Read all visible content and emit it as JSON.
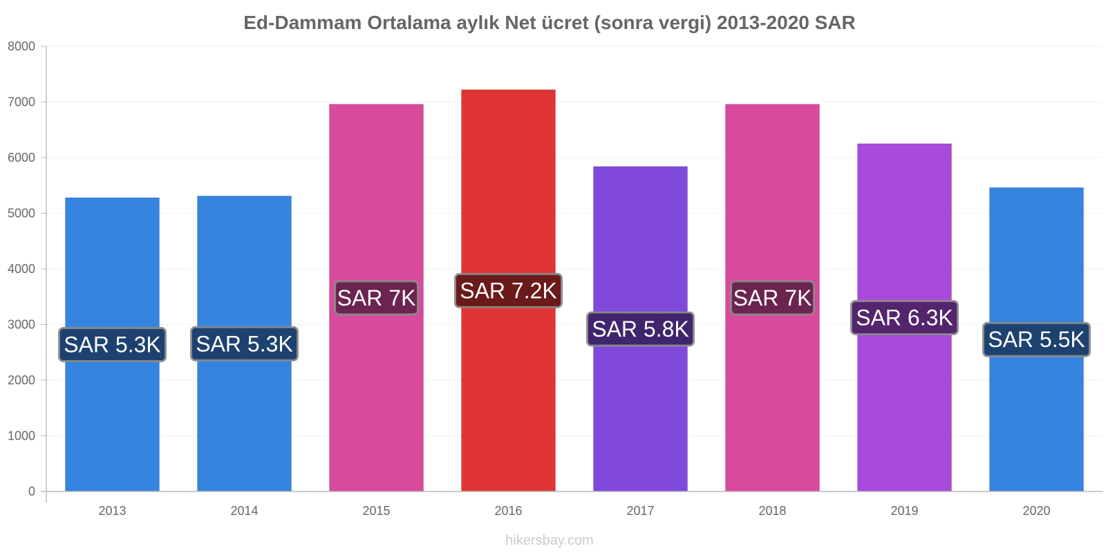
{
  "chart_data": {
    "type": "bar",
    "title": "Ed-Dammam Ortalama aylık Net ücret (sonra vergi) 2013-2020 SAR",
    "categories": [
      "2013",
      "2014",
      "2015",
      "2016",
      "2017",
      "2018",
      "2019",
      "2020"
    ],
    "values": [
      5280,
      5310,
      6960,
      7220,
      5840,
      6960,
      6250,
      5460
    ],
    "data_labels": [
      "SAR 5.3K",
      "SAR 5.3K",
      "SAR 7K",
      "SAR 7.2K",
      "SAR 5.8K",
      "SAR 7K",
      "SAR 6.3K",
      "SAR 5.5K"
    ],
    "bar_colors": [
      "#3584e0",
      "#3584e0",
      "#d94a9c",
      "#e03535",
      "#8149db",
      "#d94a9c",
      "#a94adb",
      "#3584e0"
    ],
    "label_bg_colors": [
      "#1e4270",
      "#1e4270",
      "#6b2450",
      "#6b1a1a",
      "#40256d",
      "#6b2450",
      "#53256d",
      "#1e4270"
    ],
    "yticks": [
      "0",
      "1000",
      "2000",
      "3000",
      "4000",
      "5000",
      "6000",
      "7000",
      "8000"
    ],
    "ylim": [
      0,
      8000
    ],
    "xlabel": "",
    "ylabel": "",
    "grid": true,
    "legend": "none"
  },
  "watermark": "hikersbay.com"
}
